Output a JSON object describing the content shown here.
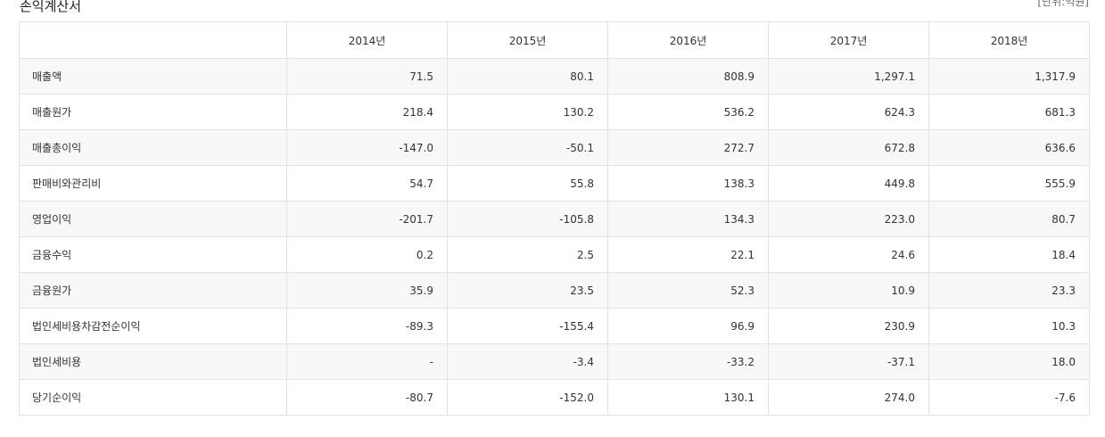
{
  "title": "손익계산서",
  "unit": "[단위:억원]",
  "years": [
    "2014년",
    "2015년",
    "2016년",
    "2017년",
    "2018년"
  ],
  "rows": [
    {
      "label": "매출액",
      "values": [
        "71.5",
        "80.1",
        "808.9",
        "1,297.1",
        "1,317.9"
      ]
    },
    {
      "label": "매출원가",
      "values": [
        "218.4",
        "130.2",
        "536.2",
        "624.3",
        "681.3"
      ]
    },
    {
      "label": "매출총이익",
      "values": [
        "-147.0",
        "-50.1",
        "272.7",
        "672.8",
        "636.6"
      ]
    },
    {
      "label": "판매비와관리비",
      "values": [
        "54.7",
        "55.8",
        "138.3",
        "449.8",
        "555.9"
      ]
    },
    {
      "label": "영업이익",
      "values": [
        "-201.7",
        "-105.8",
        "134.3",
        "223.0",
        "80.7"
      ]
    },
    {
      "label": "금융수익",
      "values": [
        "0.2",
        "2.5",
        "22.1",
        "24.6",
        "18.4"
      ]
    },
    {
      "label": "금융원가",
      "values": [
        "35.9",
        "23.5",
        "52.3",
        "10.9",
        "23.3"
      ]
    },
    {
      "label": "법인세비용차감전순이익",
      "values": [
        "-89.3",
        "-155.4",
        "96.9",
        "230.9",
        "10.3"
      ]
    },
    {
      "label": "법인세비용",
      "values": [
        "-",
        "-3.4",
        "-33.2",
        "-37.1",
        "18.0"
      ]
    },
    {
      "label": "당기순이익",
      "values": [
        "-80.7",
        "-152.0",
        "130.1",
        "274.0",
        "-7.6"
      ]
    }
  ]
}
